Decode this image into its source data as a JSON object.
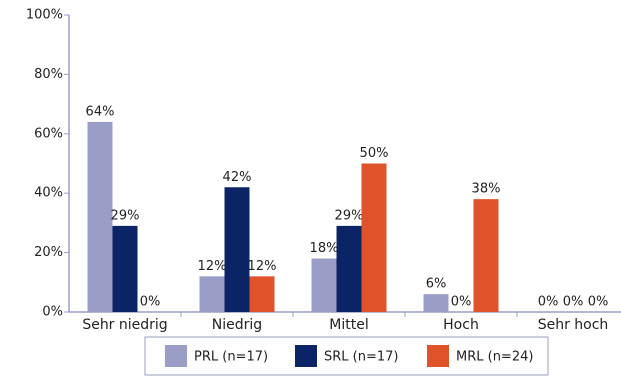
{
  "chart_data": {
    "type": "bar",
    "categories": [
      "Sehr niedrig",
      "Niedrig",
      "Mittel",
      "Hoch",
      "Sehr hoch"
    ],
    "series": [
      {
        "name": "PRL (n=17)",
        "color": "#9a9dc6",
        "values": [
          64,
          12,
          18,
          6,
          0
        ],
        "value_labels": [
          "64%",
          "12%",
          "18%",
          "6%",
          "0%"
        ]
      },
      {
        "name": "SRL (n=17)",
        "color": "#0b2466",
        "values": [
          29,
          42,
          29,
          0,
          0
        ],
        "value_labels": [
          "29%",
          "42%",
          "29%",
          "0%",
          "0%"
        ]
      },
      {
        "name": "MRL (n=24)",
        "color": "#e0522a",
        "values": [
          0,
          12,
          50,
          38,
          0
        ],
        "value_labels": [
          "0%",
          "12%",
          "50%",
          "38%",
          "0%"
        ]
      }
    ],
    "ylim": [
      0,
      100
    ],
    "yticks": [
      {
        "value": 0,
        "label": "0%"
      },
      {
        "value": 20,
        "label": "20%"
      },
      {
        "value": 40,
        "label": "40%"
      },
      {
        "value": 60,
        "label": "60%"
      },
      {
        "value": 80,
        "label": "80%"
      },
      {
        "value": 100,
        "label": "100%"
      }
    ],
    "grid": false,
    "legend": "bottom"
  }
}
